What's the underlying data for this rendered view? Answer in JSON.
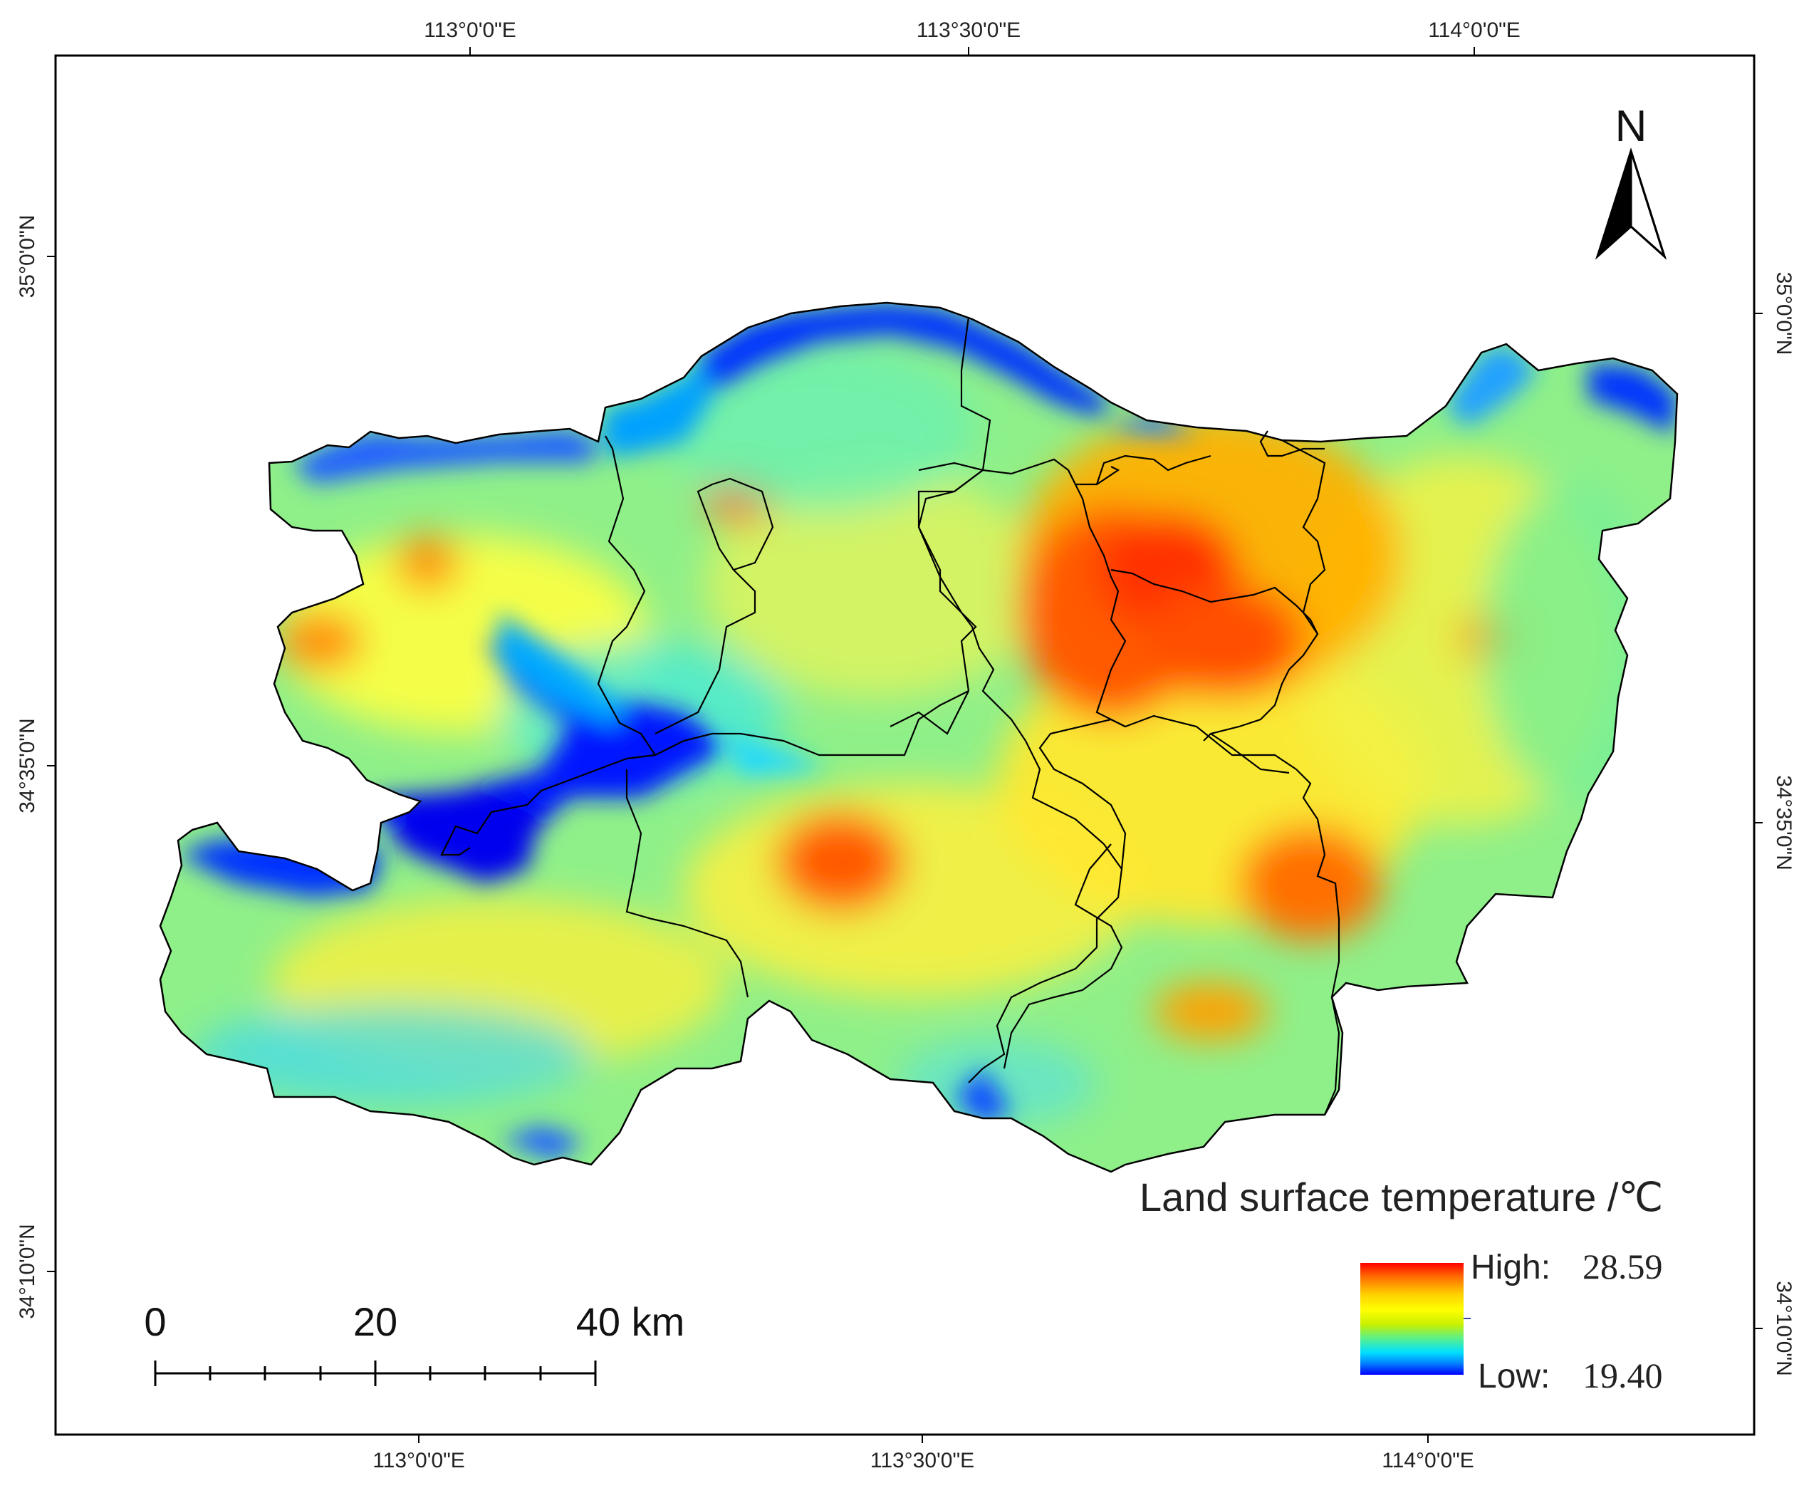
{
  "map": {
    "legend": {
      "title": "Land surface temperature /℃",
      "high_label": "High:",
      "high_value": "28.59",
      "low_label": "Low:",
      "low_value": "19.40",
      "colors": [
        "#ff0000",
        "#ff6a00",
        "#ffd000",
        "#ffff00",
        "#c8f000",
        "#55f090",
        "#00e0ff",
        "#0080ff",
        "#0000ff"
      ]
    },
    "axes": {
      "top": [
        "113°0'0\"E",
        "113°30'0\"E",
        "114°0'0\"E"
      ],
      "bottom": [
        "113°0'0\"E",
        "113°30'0\"E",
        "114°0'0\"E"
      ],
      "left": [
        "35°0'0\"N",
        "34°35'0\"N",
        "34°10'0\"N"
      ],
      "right": [
        "35°0'0\"N",
        "34°35'0\"N",
        "34°10'0\"N"
      ]
    },
    "north_arrow": {
      "label": "N",
      "icon": "north-arrow-icon"
    },
    "scale_bar": {
      "labels": [
        "0",
        "20",
        "40 km"
      ]
    }
  }
}
